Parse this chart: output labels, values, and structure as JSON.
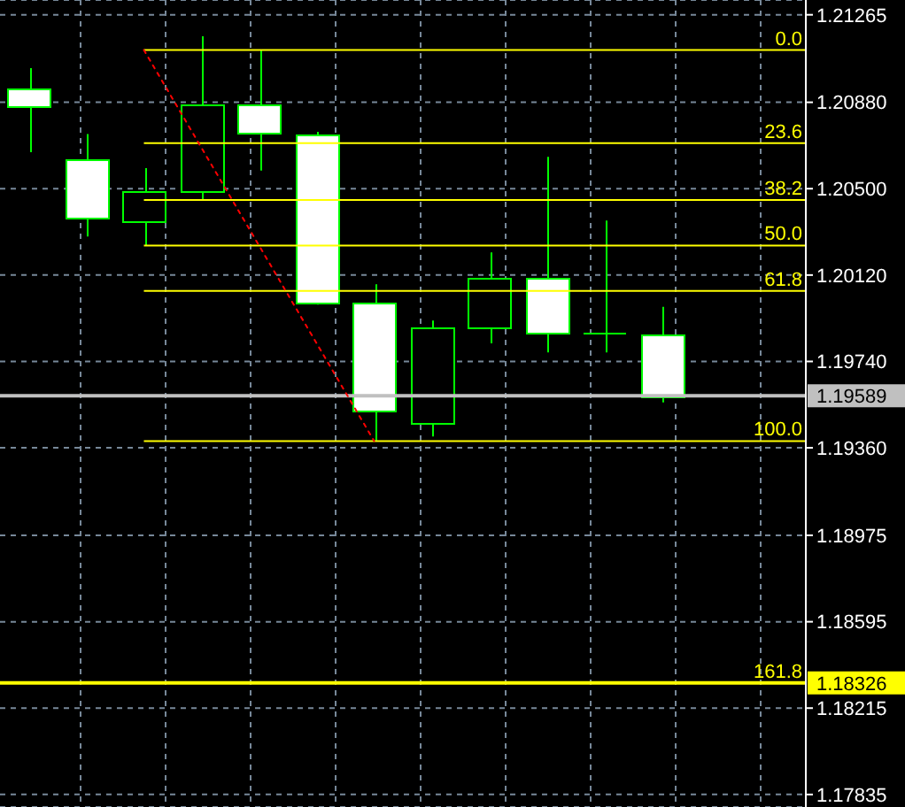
{
  "chart_data": {
    "type": "candlestick",
    "categories": [
      null,
      null,
      null,
      null,
      null,
      null,
      null,
      null,
      null,
      null,
      null,
      null,
      null,
      null
    ],
    "ohlc": [
      [
        1.2094,
        1.2103,
        1.2066,
        1.2086
      ],
      [
        1.2063,
        1.2074,
        1.2029,
        1.2037
      ],
      [
        1.2036,
        1.2059,
        1.2025,
        1.2049
      ],
      [
        1.2049,
        1.2117,
        1.2045,
        1.2087
      ],
      [
        1.2087,
        1.2111,
        1.2058,
        1.2075
      ],
      [
        1.2074,
        1.2075,
        1.1999,
        1.2
      ],
      [
        1.2,
        1.2008,
        1.1939,
        1.1952
      ],
      [
        1.1947,
        1.1992,
        1.1941,
        1.1989
      ],
      [
        1.1989,
        1.2022,
        1.1982,
        1.2011
      ],
      [
        1.2011,
        1.2064,
        1.1978,
        1.1987
      ],
      [
        1.1987,
        1.2036,
        1.1978,
        1.1987
      ],
      [
        1.1986,
        1.1998,
        1.1956,
        1.1959
      ],
      null,
      null
    ],
    "color": "#00ff00",
    "colors": [
      "#ffffff",
      "#ffffff",
      "#000000",
      "#000000",
      "#ffffff",
      "#ffffff",
      "#ffffff",
      "#000000",
      "#000000",
      "#ffffff",
      "#00ff00",
      "#ffffff",
      null,
      null
    ],
    "series": [
      {
        "type": "line",
        "color": "#ff0000",
        "line_style": "dotted",
        "marker": "none",
        "values": [
          null,
          null,
          1.2111,
          1.2068,
          1.2025,
          1.1982,
          1.1939,
          null,
          null,
          null,
          null,
          null,
          null,
          null
        ]
      }
    ],
    "ylim": [
      1.1778,
      1.2133
    ],
    "yticks": [
      1.21265,
      {
        "value": 1.2088,
        "label": "1.20880"
      },
      {
        "value": 1.205,
        "label": "1.20500"
      },
      {
        "value": 1.2012,
        "label": "1.20120"
      },
      {
        "value": 1.1974,
        "label": "1.19740"
      },
      {
        "value": 1.1936,
        "label": "1.19360"
      },
      1.18975,
      1.18595,
      1.18215,
      1.17835
    ],
    "grid": true,
    "tick_labels": "y",
    "ref_lines": [
      {
        "axis": "y",
        "value": 1.2111,
        "color": "#ffff00"
      },
      {
        "axis": "y",
        "value": 1.207,
        "color": "#ffff00"
      },
      {
        "axis": "y",
        "value": 1.2045,
        "color": "#ffff00"
      },
      {
        "axis": "y",
        "value": 1.2025,
        "color": "#ffff00"
      },
      {
        "axis": "y",
        "value": 1.2005,
        "color": "#ffff00"
      },
      {
        "axis": "y",
        "value": 1.1939,
        "color": "#ffff00"
      },
      {
        "axis": "y",
        "value": 1.19589,
        "label": "1.19589",
        "color": "#c0c0c0"
      },
      {
        "axis": "y",
        "value": 1.18326,
        "label": "1.18326",
        "color": "#ffff00"
      }
    ],
    "annotations": [
      {
        "text": "0.0",
        "y": 1.2111
      },
      {
        "text": "23.6",
        "y": 1.207
      },
      {
        "text": "38.2",
        "y": 1.2045
      },
      {
        "text": "50.0",
        "y": 1.2025
      },
      {
        "text": "61.8",
        "y": 1.2005
      },
      {
        "text": "100.0",
        "y": 1.1939
      },
      {
        "text": "161.8",
        "y": 1.18326
      }
    ]
  }
}
